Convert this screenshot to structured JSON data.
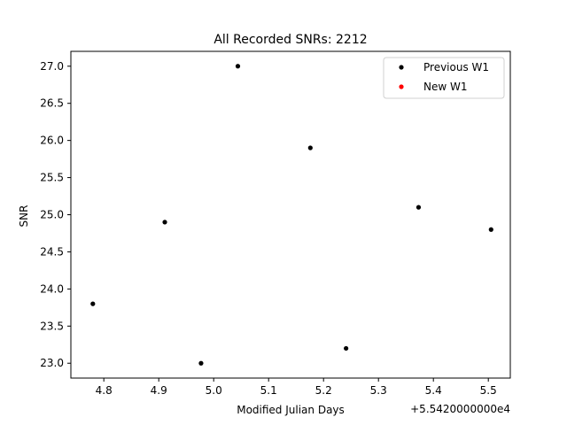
{
  "chart_data": {
    "type": "scatter",
    "title": "All Recorded SNRs: 2212",
    "xlabel": "Modified Julian Days",
    "ylabel": "SNR",
    "x_offset_label": "+5.5420000000e4",
    "xlim": [
      4.74,
      5.54
    ],
    "ylim": [
      22.8,
      27.2
    ],
    "x_ticks": [
      4.8,
      4.9,
      5.0,
      5.1,
      5.2,
      5.3,
      5.4,
      5.5
    ],
    "x_tick_labels": [
      "4.8",
      "4.9",
      "5.0",
      "5.1",
      "5.2",
      "5.3",
      "5.4",
      "5.5"
    ],
    "y_ticks": [
      23.0,
      23.5,
      24.0,
      24.5,
      25.0,
      25.5,
      26.0,
      26.5,
      27.0
    ],
    "y_tick_labels": [
      "23.0",
      "23.5",
      "24.0",
      "24.5",
      "25.0",
      "25.5",
      "26.0",
      "26.5",
      "27.0"
    ],
    "grid": false,
    "legend_position": "top-right",
    "series": [
      {
        "name": "Previous W1",
        "color": "#000000",
        "x": [
          4.78,
          4.911,
          4.977,
          5.044,
          5.176,
          5.241,
          5.373,
          5.505
        ],
        "y": [
          23.8,
          24.9,
          23.0,
          27.0,
          25.9,
          23.2,
          25.1,
          24.8
        ]
      },
      {
        "name": "New W1",
        "color": "#ff0000",
        "x": [],
        "y": []
      }
    ]
  }
}
